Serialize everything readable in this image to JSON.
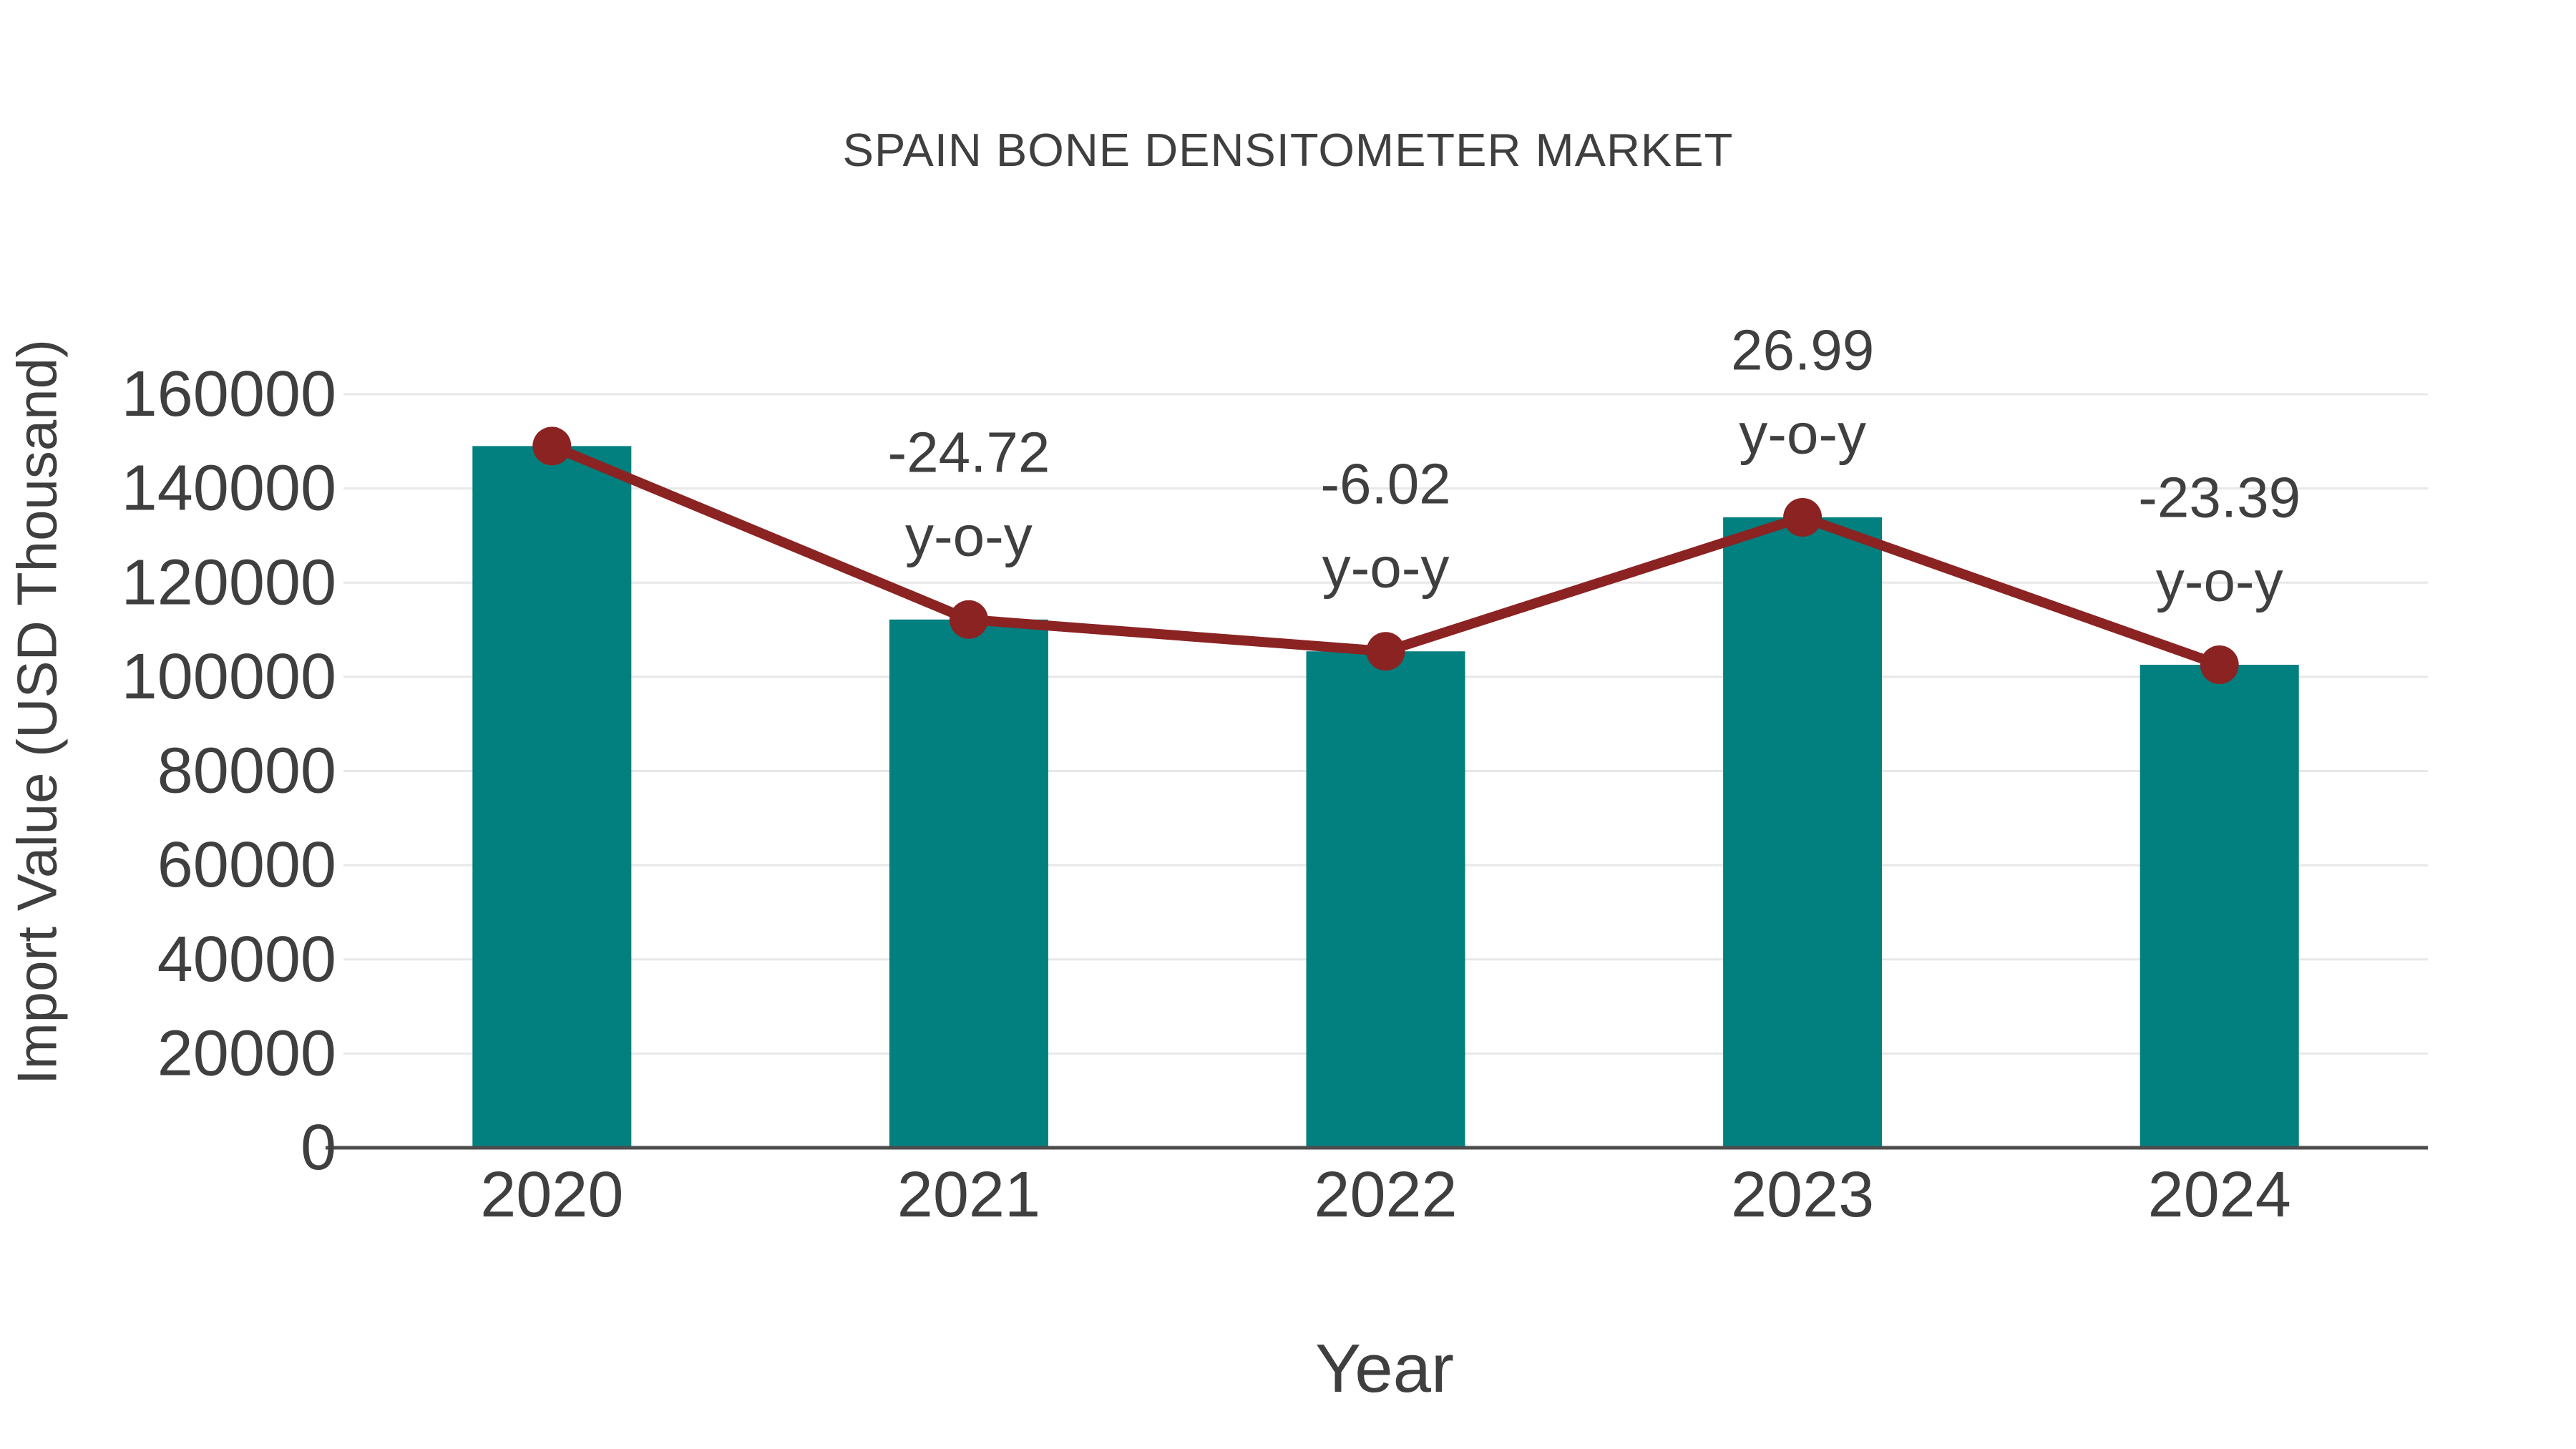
{
  "title": "SPAIN BONE DENSITOMETER MARKET",
  "chart_data": {
    "type": "bar",
    "title": "SPAIN BONE DENSITOMETER MARKET",
    "xlabel": "Year",
    "ylabel": "Import Value (USD Thousand)",
    "categories": [
      "2020",
      "2021",
      "2022",
      "2023",
      "2024"
    ],
    "series": [
      {
        "name": "Import Value (USD Thousand)",
        "type": "bar",
        "color": "#027F7F",
        "values": [
          149000,
          112167,
          105415,
          133866,
          102555
        ]
      },
      {
        "name": "year-over-year trend line",
        "type": "line",
        "color": "#8B2323",
        "values": [
          149000,
          112167,
          105415,
          133866,
          102555
        ]
      }
    ],
    "annotations": [
      {
        "category": "2021",
        "value": "-24.72",
        "suffix": "y-o-y"
      },
      {
        "category": "2022",
        "value": "-6.02",
        "suffix": "y-o-y"
      },
      {
        "category": "2023",
        "value": "26.99",
        "suffix": "y-o-y"
      },
      {
        "category": "2024",
        "value": "-23.39",
        "suffix": "y-o-y"
      }
    ],
    "ylim": [
      0,
      160000
    ],
    "yticks": [
      0,
      20000,
      40000,
      60000,
      80000,
      100000,
      120000,
      140000,
      160000
    ],
    "grid": true,
    "legend": "none",
    "colors": {
      "bar": "#027F7F",
      "line": "#8B2323",
      "grid": "#E8E8E8",
      "axis": "#4D4D4D",
      "text": "#3F3F3F"
    }
  }
}
